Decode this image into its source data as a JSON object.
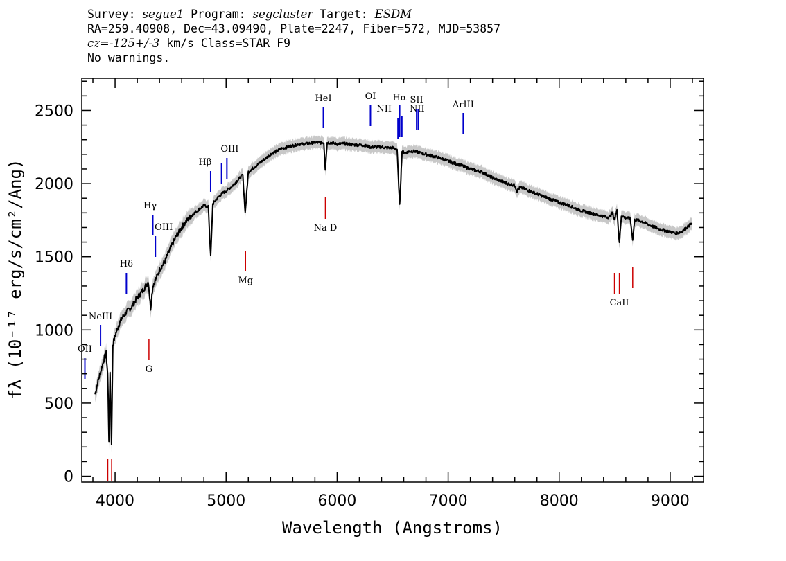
{
  "header": {
    "survey_label": "Survey: ",
    "survey": "segue1",
    "program_label": " Program: ",
    "program": "segcluster",
    "target_label": " Target: ",
    "target": "ESDM",
    "line2": "RA=259.40908, Dec=43.09490, Plate=2247, Fiber=572, MJD=53857",
    "cz_label": "cz=",
    "cz_value": "-125+/-3",
    "cz_rest": " km/s Class=STAR F9",
    "line4": "No warnings."
  },
  "chart_data": {
    "type": "line",
    "xlabel": "Wavelength (Angstroms)",
    "ylabel": "f_λ (10^-17 erg/s/cm²/Ang)",
    "ylabel_display": "fλ (10⁻¹⁷ erg/s/cm²/Ang)",
    "xlim": [
      3700,
      9300
    ],
    "ylim": [
      -40,
      2720
    ],
    "x_ticks": [
      4000,
      5000,
      6000,
      7000,
      8000,
      9000
    ],
    "y_ticks": [
      0,
      500,
      1000,
      1500,
      2000,
      2500
    ],
    "x_tick_labels": [
      "4000",
      "5000",
      "6000",
      "7000",
      "8000",
      "9000"
    ],
    "y_tick_labels": [
      "0",
      "500",
      "1000",
      "1500",
      "2000",
      "2500"
    ],
    "series": [
      {
        "color": "#000000",
        "error_band_color": "#c8c8c8",
        "x": [
          3820,
          3850,
          3880,
          3900,
          3920,
          3933,
          3945,
          3955,
          3968,
          3980,
          4000,
          4030,
          4060,
          4100,
          4150,
          4200,
          4250,
          4300,
          4320,
          4340,
          4380,
          4400,
          4450,
          4500,
          4550,
          4600,
          4650,
          4700,
          4750,
          4800,
          4840,
          4861,
          4880,
          4920,
          4960,
          5000,
          5050,
          5100,
          5150,
          5172,
          5200,
          5250,
          5300,
          5350,
          5400,
          5450,
          5500,
          5550,
          5600,
          5650,
          5700,
          5750,
          5800,
          5850,
          5880,
          5893,
          5910,
          5950,
          6000,
          6050,
          6100,
          6150,
          6200,
          6250,
          6300,
          6350,
          6400,
          6450,
          6500,
          6540,
          6563,
          6585,
          6620,
          6650,
          6700,
          6750,
          6800,
          6850,
          6900,
          6950,
          7000,
          7050,
          7100,
          7150,
          7200,
          7250,
          7300,
          7350,
          7400,
          7450,
          7500,
          7550,
          7600,
          7620,
          7650,
          7700,
          7750,
          7800,
          7850,
          7900,
          7950,
          8000,
          8050,
          8100,
          8150,
          8200,
          8250,
          8300,
          8350,
          8400,
          8450,
          8480,
          8500,
          8520,
          8542,
          8560,
          8600,
          8640,
          8662,
          8680,
          8700,
          8750,
          8800,
          8850,
          8900,
          8950,
          9000,
          9050,
          9100,
          9150,
          9180,
          9200
        ],
        "y": [
          560,
          660,
          740,
          800,
          840,
          700,
          250,
          720,
          230,
          900,
          960,
          1030,
          1080,
          1120,
          1160,
          1220,
          1270,
          1330,
          1150,
          1300,
          1370,
          1410,
          1470,
          1560,
          1640,
          1700,
          1750,
          1790,
          1820,
          1850,
          1840,
          1500,
          1860,
          1900,
          1930,
          1950,
          1980,
          2020,
          2060,
          1800,
          2080,
          2110,
          2140,
          2170,
          2200,
          2220,
          2240,
          2250,
          2260,
          2270,
          2270,
          2275,
          2280,
          2280,
          2280,
          2100,
          2280,
          2280,
          2270,
          2275,
          2270,
          2265,
          2265,
          2260,
          2250,
          2250,
          2250,
          2245,
          2245,
          2235,
          1850,
          2220,
          2210,
          2220,
          2220,
          2210,
          2200,
          2190,
          2180,
          2170,
          2155,
          2140,
          2130,
          2115,
          2100,
          2090,
          2080,
          2060,
          2040,
          2025,
          2010,
          1995,
          1990,
          1950,
          1975,
          1960,
          1945,
          1930,
          1915,
          1900,
          1885,
          1870,
          1860,
          1845,
          1830,
          1815,
          1805,
          1795,
          1785,
          1775,
          1770,
          1800,
          1750,
          1830,
          1590,
          1780,
          1765,
          1760,
          1620,
          1750,
          1750,
          1740,
          1720,
          1705,
          1690,
          1680,
          1670,
          1660,
          1670,
          1700,
          1720,
          1730
        ]
      }
    ],
    "emission_lines": [
      {
        "label": "OII",
        "x": 3728
      },
      {
        "label": "NeIII",
        "x": 3869
      },
      {
        "label": "Hδ",
        "x": 4102
      },
      {
        "label": "Hγ",
        "x": 4340
      },
      {
        "label": "OIII",
        "x": 4363
      },
      {
        "label": "Hβ",
        "x": 4861
      },
      {
        "label": "OIII",
        "x": 4959
      },
      {
        "label": "OIII",
        "x": 5007
      },
      {
        "label": "HeI",
        "x": 5876
      },
      {
        "label": "OI",
        "x": 6300
      },
      {
        "label": "NII",
        "x": 6548
      },
      {
        "label": "Hα",
        "x": 6563
      },
      {
        "label": "NII",
        "x": 6583
      },
      {
        "label": "SII",
        "x": 6716
      },
      {
        "label": "SII",
        "x": 6731
      },
      {
        "label": "ArIII",
        "x": 7136
      }
    ],
    "absorption_lines": [
      {
        "label": "",
        "x": 3934
      },
      {
        "label": "",
        "x": 3969
      },
      {
        "label": "G",
        "x": 4305
      },
      {
        "label": "Mg",
        "x": 5175
      },
      {
        "label": "Na D",
        "x": 5894
      },
      {
        "label": "",
        "x": 8498
      },
      {
        "label": "CaII",
        "x": 8542
      },
      {
        "label": "",
        "x": 8662
      }
    ],
    "emission_color": "#0000cc",
    "absorption_color": "#cc0000"
  }
}
